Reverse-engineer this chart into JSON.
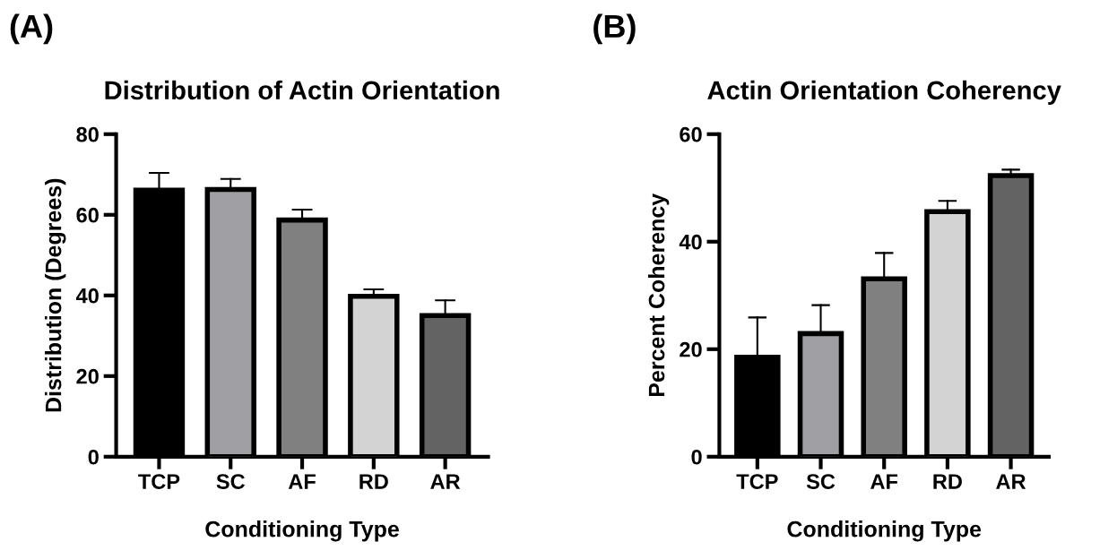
{
  "chart_data": [
    {
      "type": "bar",
      "title": "Distribution of Actin Orientation",
      "xlabel": "Conditioning Type",
      "ylabel": "Distribution (Degrees)",
      "annotations": [
        "(A)"
      ],
      "categories": [
        "TCP",
        "SC",
        "AF",
        "RD",
        "AR"
      ],
      "values": [
        66.1,
        66.3,
        58.7,
        39.8,
        35.0
      ],
      "errors": [
        4.3,
        2.6,
        2.6,
        1.7,
        3.8
      ],
      "colors": [
        "#000000",
        "#a0a0a4",
        "#808080",
        "#d3d3d3",
        "#636363"
      ],
      "ylim": [
        0,
        80
      ],
      "yticks": [
        0,
        20,
        40,
        60,
        80
      ],
      "grid": false,
      "legend": false
    },
    {
      "type": "bar",
      "title": "Actin Orientation Coherency",
      "xlabel": "Conditioning Type",
      "ylabel": "Percent Coherency",
      "annotations": [
        "(B)"
      ],
      "categories": [
        "TCP",
        "SC",
        "AF",
        "RD",
        "AR"
      ],
      "values": [
        18.5,
        22.9,
        33.1,
        45.6,
        52.3
      ],
      "errors": [
        7.4,
        5.3,
        4.8,
        2.0,
        1.1
      ],
      "colors": [
        "#000000",
        "#a0a0a4",
        "#808080",
        "#d3d3d3",
        "#636363"
      ],
      "ylim": [
        0,
        60
      ],
      "yticks": [
        0,
        20,
        40,
        60
      ],
      "grid": false,
      "legend": false
    }
  ]
}
